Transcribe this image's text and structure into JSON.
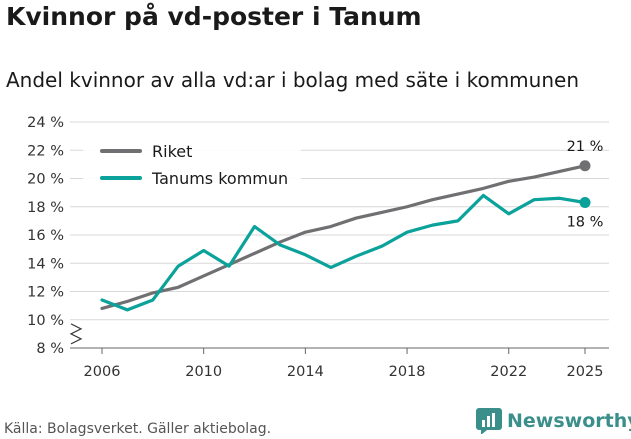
{
  "title": "Kvinnor på vd-poster i Tanum",
  "subtitle": "Andel kvinnor av alla vd:ar i bolag med säte i kommunen",
  "source": "Källa: Bolagsverket. Gäller aktiebolag.",
  "brand": "Newsworthy",
  "colors": {
    "riket": "#707073",
    "tanum": "#0aa29a",
    "grid": "#d9d9d9",
    "brand": "#3b8f8b"
  },
  "chart_data": {
    "type": "line",
    "title": "Kvinnor på vd-poster i Tanum",
    "subtitle": "Andel kvinnor av alla vd:ar i bolag med säte i kommunen",
    "xlabel": "",
    "ylabel": "",
    "xlim": [
      2006,
      2025
    ],
    "ylim": [
      8,
      24
    ],
    "x_ticks": [
      2006,
      2010,
      2014,
      2018,
      2022,
      2025
    ],
    "y_ticks": [
      8,
      10,
      12,
      14,
      16,
      18,
      20,
      22,
      24
    ],
    "y_tick_labels": [
      "8 %",
      "10 %",
      "12 %",
      "14 %",
      "16 %",
      "18 %",
      "20 %",
      "22 %",
      "24 %"
    ],
    "axis_break": true,
    "legend_position": "top-left",
    "x": [
      2006,
      2007,
      2008,
      2009,
      2010,
      2011,
      2012,
      2013,
      2014,
      2015,
      2016,
      2017,
      2018,
      2019,
      2020,
      2021,
      2022,
      2023,
      2024,
      2025
    ],
    "series": [
      {
        "name": "Riket",
        "color": "#707073",
        "values": [
          10.8,
          11.3,
          11.9,
          12.3,
          13.1,
          13.9,
          14.7,
          15.5,
          16.2,
          16.6,
          17.2,
          17.6,
          18.0,
          18.5,
          18.9,
          19.3,
          19.8,
          20.1,
          20.5,
          20.9
        ],
        "end_label": "21 %"
      },
      {
        "name": "Tanums kommun",
        "color": "#0aa29a",
        "values": [
          11.4,
          10.7,
          11.4,
          13.8,
          14.9,
          13.8,
          16.6,
          15.3,
          14.6,
          13.7,
          14.5,
          15.2,
          16.2,
          16.7,
          17.0,
          18.8,
          17.5,
          18.5,
          18.6,
          18.3
        ],
        "end_label": "18 %"
      }
    ]
  }
}
